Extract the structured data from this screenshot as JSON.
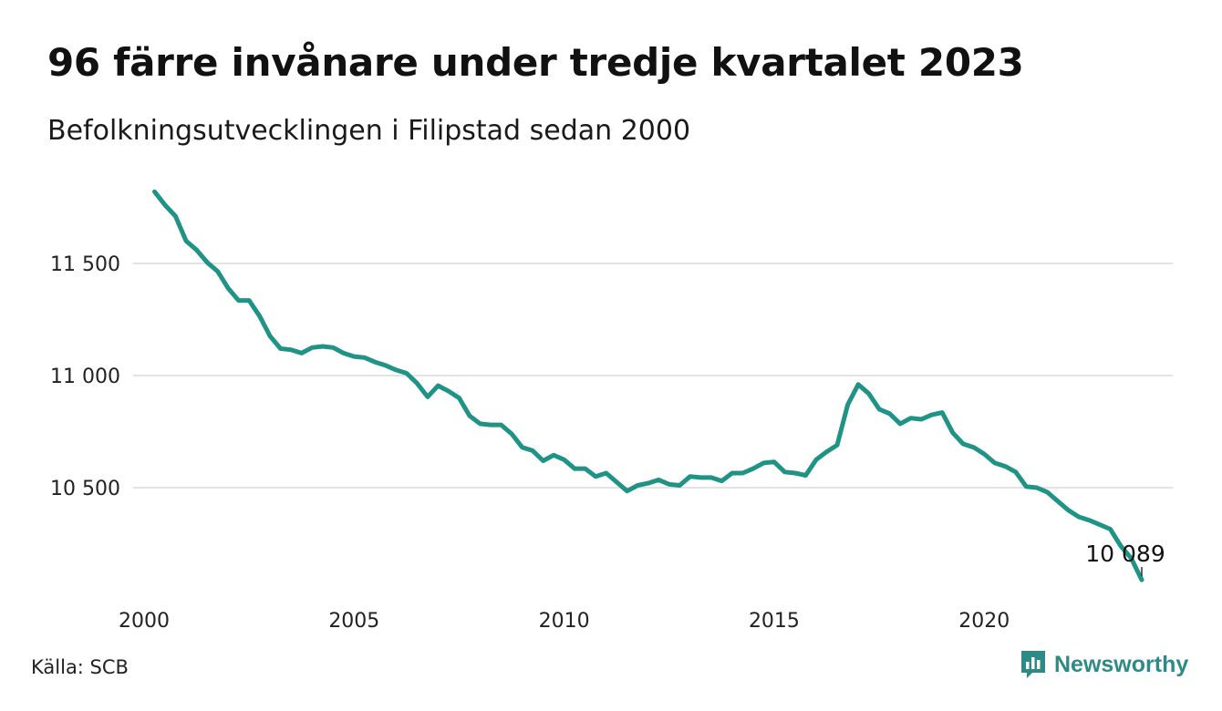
{
  "title": "96 färre invånare under tredje kvartalet 2023",
  "subtitle": "Befolkningsutvecklingen i Filipstad sedan 2000",
  "source": "Källa: SCB",
  "brand": {
    "name": "Newsworthy",
    "icon": "newsworthy-logo-icon"
  },
  "colors": {
    "line": "#1f9486",
    "grid": "#e3e3e3",
    "text": "#111111",
    "brand": "#2e8a84"
  },
  "chart_data": {
    "type": "line",
    "title": "96 färre invånare under tredje kvartalet 2023",
    "xlabel": "",
    "ylabel": "",
    "xlim": [
      2000,
      2023.75
    ],
    "ylim": [
      10050,
      11850
    ],
    "x_ticks": [
      2000,
      2005,
      2010,
      2015,
      2020
    ],
    "x_tick_labels": [
      "2000",
      "2005",
      "2010",
      "2015",
      "2020"
    ],
    "y_ticks": [
      10500,
      11000,
      11500
    ],
    "y_tick_labels": [
      "10 500",
      "11 000",
      "11 500"
    ],
    "grid": "horizontal",
    "legend": "none",
    "end_label": "10 089",
    "series": [
      {
        "x": [
          2000.25,
          2000.5,
          2000.75,
          2001.0,
          2001.25,
          2001.5,
          2001.75,
          2002.0,
          2002.25,
          2002.5,
          2002.75,
          2003.0,
          2003.25,
          2003.5,
          2003.75,
          2004.0,
          2004.25,
          2004.5,
          2004.75,
          2005.0,
          2005.25,
          2005.5,
          2005.75,
          2006.0,
          2006.25,
          2006.5,
          2006.75,
          2007.0,
          2007.25,
          2007.5,
          2007.75,
          2008.0,
          2008.25,
          2008.5,
          2008.75,
          2009.0,
          2009.25,
          2009.5,
          2009.75,
          2010.0,
          2010.25,
          2010.5,
          2010.75,
          2011.0,
          2011.25,
          2011.5,
          2011.75,
          2012.0,
          2012.25,
          2012.5,
          2012.75,
          2013.0,
          2013.25,
          2013.5,
          2013.75,
          2014.0,
          2014.25,
          2014.5,
          2014.75,
          2015.0,
          2015.25,
          2015.5,
          2015.75,
          2016.0,
          2016.25,
          2016.5,
          2016.75,
          2017.0,
          2017.25,
          2017.5,
          2017.75,
          2018.0,
          2018.25,
          2018.5,
          2018.75,
          2019.0,
          2019.25,
          2019.5,
          2019.75,
          2020.0,
          2020.25,
          2020.5,
          2020.75,
          2021.0,
          2021.25,
          2021.5,
          2021.75,
          2022.0,
          2022.25,
          2022.5,
          2022.75,
          2023.0,
          2023.25,
          2023.5,
          2023.75
        ],
        "values": [
          11820,
          11760,
          11710,
          11600,
          11560,
          11505,
          11465,
          11390,
          11335,
          11335,
          11265,
          11175,
          11120,
          11115,
          11100,
          11125,
          11130,
          11125,
          11100,
          11085,
          11080,
          11060,
          11045,
          11025,
          11010,
          10965,
          10905,
          10955,
          10930,
          10900,
          10820,
          10785,
          10780,
          10780,
          10740,
          10680,
          10665,
          10620,
          10645,
          10625,
          10585,
          10585,
          10550,
          10565,
          10525,
          10485,
          10510,
          10520,
          10535,
          10515,
          10510,
          10550,
          10545,
          10545,
          10530,
          10565,
          10565,
          10585,
          10610,
          10615,
          10570,
          10565,
          10555,
          10625,
          10660,
          10690,
          10870,
          10960,
          10920,
          10850,
          10830,
          10785,
          10810,
          10805,
          10825,
          10835,
          10745,
          10695,
          10680,
          10650,
          10610,
          10595,
          10570,
          10505,
          10500,
          10480,
          10440,
          10400,
          10370,
          10355,
          10335,
          10315,
          10240,
          10185,
          10089
        ]
      }
    ]
  }
}
